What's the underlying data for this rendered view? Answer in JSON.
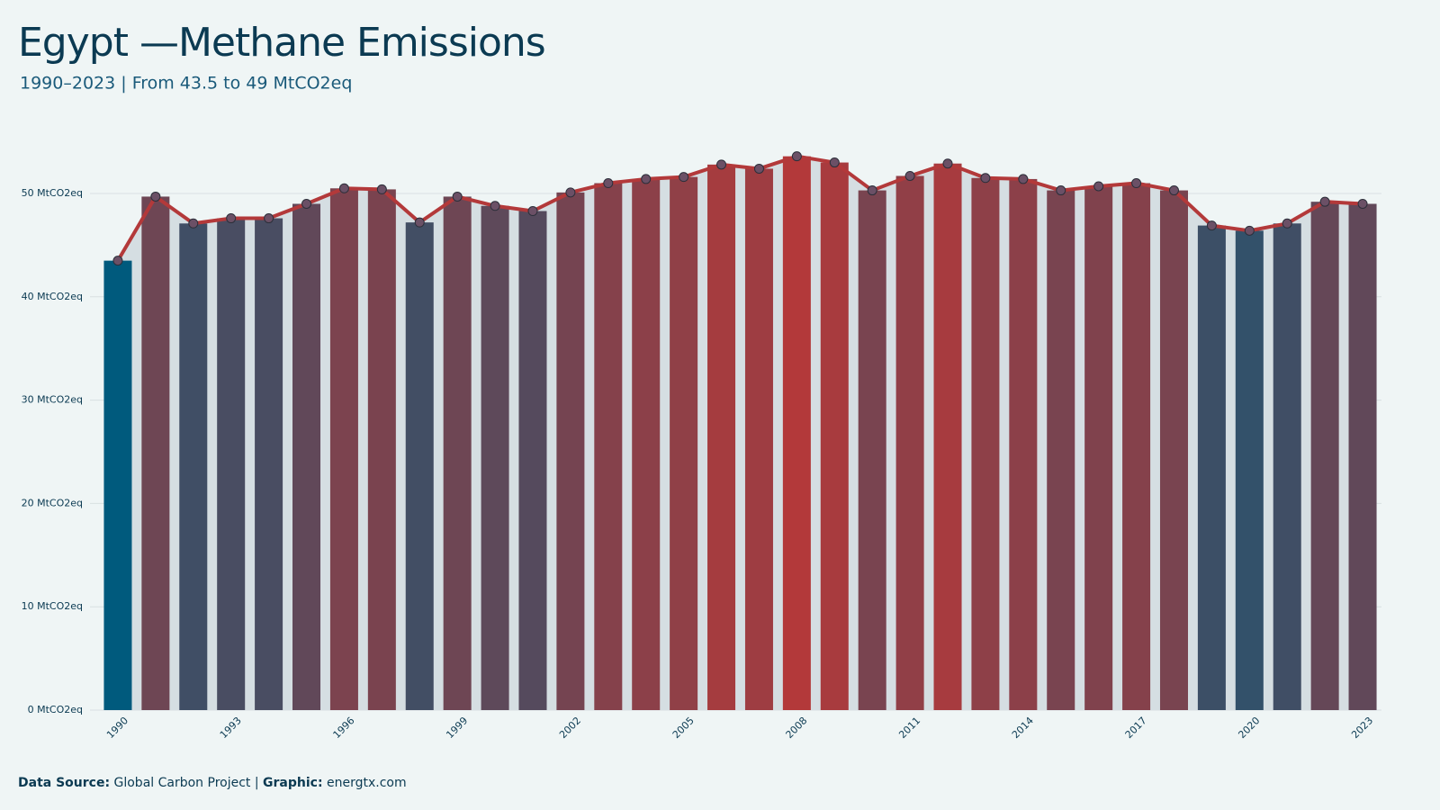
{
  "chart_data": {
    "type": "bar",
    "title": "Egypt —Methane Emissions",
    "subtitle": "1990–2023 | From 43.5 to 49 MtCO2eq",
    "categories": [
      "1990",
      null,
      null,
      "1993",
      null,
      null,
      "1996",
      null,
      null,
      "1999",
      null,
      null,
      "2002",
      null,
      null,
      "2005",
      null,
      null,
      "2008",
      null,
      null,
      "2011",
      null,
      null,
      "2014",
      null,
      null,
      "2017",
      null,
      null,
      "2020",
      null,
      null,
      "2023"
    ],
    "values": [
      43.5,
      49.7,
      47.1,
      47.6,
      47.6,
      49.0,
      50.5,
      50.4,
      47.2,
      49.7,
      48.8,
      48.3,
      50.1,
      51.0,
      51.4,
      51.6,
      52.8,
      52.4,
      53.6,
      53.0,
      50.3,
      51.7,
      52.9,
      51.5,
      51.4,
      50.3,
      50.7,
      51.0,
      50.3,
      46.9,
      46.4,
      47.1,
      49.2,
      49.0
    ],
    "ylim": [
      0,
      55.5
    ],
    "yticks": [
      {
        "value": 0,
        "label": "0 MtCO2eq"
      },
      {
        "value": 10,
        "label": "10 MtCO2eq"
      },
      {
        "value": 20,
        "label": "20 MtCO2eq"
      },
      {
        "value": 30,
        "label": "30 MtCO2eq"
      },
      {
        "value": 40,
        "label": "40 MtCO2eq"
      },
      {
        "value": 50,
        "label": "50 MtCO2eq"
      }
    ],
    "grid": true,
    "line": true,
    "line_color": "#b3393a",
    "marker_color": "#6b5066",
    "area_color": "#d5dee2",
    "color_low": "#005a7d",
    "color_high": "#b3393a",
    "source_label": "Data Source:",
    "source": "Global Carbon Project |",
    "graphic_label": "Graphic:",
    "graphic": "energtx.com"
  }
}
